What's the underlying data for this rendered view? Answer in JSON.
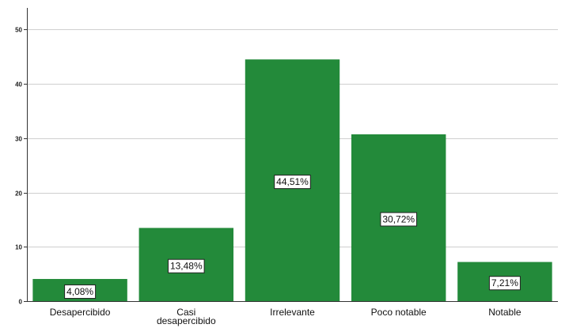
{
  "chart_data": {
    "type": "bar",
    "categories": [
      "Desapercibido",
      "Casi desapercibido",
      "Irrelevante",
      "Poco notable",
      "Notable"
    ],
    "category_label_lines": [
      [
        "Desapercibido"
      ],
      [
        "Casi",
        "desapercibido"
      ],
      [
        "Irrelevante"
      ],
      [
        "Poco notable"
      ],
      [
        "Notable"
      ]
    ],
    "values": [
      4.08,
      13.48,
      44.51,
      30.72,
      7.21
    ],
    "data_labels": [
      "4,08%",
      "13,48%",
      "44,51%",
      "30,72%",
      "7,21%"
    ],
    "yticks": [
      0,
      10,
      20,
      30,
      40,
      50
    ],
    "ylim": [
      0,
      54
    ],
    "title": "",
    "xlabel": "",
    "ylabel": "",
    "grid": true,
    "bar_color": "#238a3a",
    "grid_color": "#cfcfcf"
  }
}
